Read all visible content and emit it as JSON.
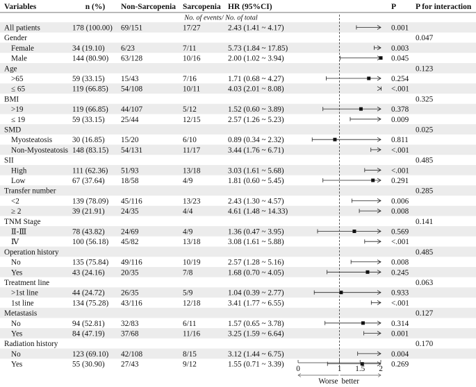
{
  "chart_data": {
    "type": "forest",
    "headers": {
      "variables": "Variables",
      "n": "n (%)",
      "non_sarcopenia": "Non-Sarcopenia",
      "sarcopenia": "Sarcopenia",
      "hr": "HR (95%CI)",
      "p": "P",
      "p_interaction": "P for interaction"
    },
    "subheader": "No. of events/ No. of total",
    "axis": {
      "ticks": [
        0,
        1,
        1.5,
        2
      ],
      "tick_labels": [
        "0",
        "1",
        "1.5",
        "2"
      ],
      "xlim": [
        0,
        2
      ],
      "reference_line": 1,
      "label_left": "Worse",
      "label_right": "better"
    },
    "rows": [
      {
        "type": "item",
        "label": "All patients",
        "n": "178 (100.00)",
        "non_sarc": "69/151",
        "sarc": "17/27",
        "hr_text": "2.43 (1.41 ~ 4.17)",
        "hr": 2.43,
        "lo": 1.41,
        "hi": 4.17,
        "p": "0.001"
      },
      {
        "type": "group",
        "label": "Gender",
        "p_int": "0.047"
      },
      {
        "type": "item",
        "label": "Female",
        "n": "34 (19.10)",
        "non_sarc": "6/23",
        "sarc": "7/11",
        "hr_text": "5.73 (1.84 ~ 17.85)",
        "hr": 5.73,
        "lo": 1.84,
        "hi": 17.85,
        "p": "0.003"
      },
      {
        "type": "item",
        "label": "Male",
        "n": "144 (80.90)",
        "non_sarc": "63/128",
        "sarc": "10/16",
        "hr_text": "2.00 (1.02 ~ 3.94)",
        "hr": 2.0,
        "lo": 1.02,
        "hi": 3.94,
        "p": "0.045"
      },
      {
        "type": "group",
        "label": "Age",
        "p_int": "0.123"
      },
      {
        "type": "item",
        "label": ">65",
        "n": "59 (33.15)",
        "non_sarc": "15/43",
        "sarc": "7/16",
        "hr_text": "1.71 (0.68 ~ 4.27)",
        "hr": 1.71,
        "lo": 0.68,
        "hi": 4.27,
        "p": "0.254"
      },
      {
        "type": "item",
        "label": "≤ 65",
        "n": "119 (66.85)",
        "non_sarc": "54/108",
        "sarc": "10/11",
        "hr_text": "4.03 (2.01 ~ 8.08)",
        "hr": 4.03,
        "lo": 2.01,
        "hi": 8.08,
        "p": "<.001"
      },
      {
        "type": "group",
        "label": "BMI",
        "p_int": "0.325"
      },
      {
        "type": "item",
        "label": ">19",
        "n": "119 (66.85)",
        "non_sarc": "44/107",
        "sarc": "5/12",
        "hr_text": "1.52 (0.60 ~ 3.89)",
        "hr": 1.52,
        "lo": 0.6,
        "hi": 3.89,
        "p": "0.378"
      },
      {
        "type": "item",
        "label": "≤ 19",
        "n": "59 (33.15)",
        "non_sarc": "25/44",
        "sarc": "12/15",
        "hr_text": "2.57 (1.26 ~ 5.23)",
        "hr": 2.57,
        "lo": 1.26,
        "hi": 5.23,
        "p": "0.009"
      },
      {
        "type": "group",
        "label": "SMD",
        "p_int": "0.025"
      },
      {
        "type": "item",
        "label": "Myosteatosis",
        "n": "30 (16.85)",
        "non_sarc": "15/20",
        "sarc": "6/10",
        "hr_text": "0.89 (0.34 ~ 2.32)",
        "hr": 0.89,
        "lo": 0.34,
        "hi": 2.32,
        "p": "0.811"
      },
      {
        "type": "item",
        "label": "Non-Myosteatosis",
        "n": "148 (83.15)",
        "non_sarc": "54/131",
        "sarc": "11/17",
        "hr_text": "3.44 (1.76 ~ 6.71)",
        "hr": 3.44,
        "lo": 1.76,
        "hi": 6.71,
        "p": "<.001"
      },
      {
        "type": "group",
        "label": "SII",
        "p_int": "0.485"
      },
      {
        "type": "item",
        "label": "High",
        "n": "111 (62.36)",
        "non_sarc": "51/93",
        "sarc": "13/18",
        "hr_text": "3.03 (1.61 ~ 5.68)",
        "hr": 3.03,
        "lo": 1.61,
        "hi": 5.68,
        "p": "<.001"
      },
      {
        "type": "item",
        "label": "Low",
        "n": "67 (37.64)",
        "non_sarc": "18/58",
        "sarc": "4/9",
        "hr_text": "1.81 (0.60 ~ 5.45)",
        "hr": 1.81,
        "lo": 0.6,
        "hi": 5.45,
        "p": "0.291"
      },
      {
        "type": "group",
        "label": "Transfer number",
        "p_int": "0.285"
      },
      {
        "type": "item",
        "label": "<2",
        "n": "139 (78.09)",
        "non_sarc": "45/116",
        "sarc": "13/23",
        "hr_text": "2.43 (1.30 ~ 4.57)",
        "hr": 2.43,
        "lo": 1.3,
        "hi": 4.57,
        "p": "0.006"
      },
      {
        "type": "item",
        "label": "≥ 2",
        "n": "39 (21.91)",
        "non_sarc": "24/35",
        "sarc": "4/4",
        "hr_text": "4.61 (1.48 ~ 14.33)",
        "hr": 4.61,
        "lo": 1.48,
        "hi": 14.33,
        "p": "0.008"
      },
      {
        "type": "group",
        "label": "TNM Stage",
        "p_int": "0.141"
      },
      {
        "type": "item",
        "label": "Ⅱ-Ⅲ",
        "n": "78 (43.82)",
        "non_sarc": "24/69",
        "sarc": "4/9",
        "hr_text": "1.36 (0.47 ~ 3.95)",
        "hr": 1.36,
        "lo": 0.47,
        "hi": 3.95,
        "p": "0.569"
      },
      {
        "type": "item",
        "label": "Ⅳ",
        "n": "100 (56.18)",
        "non_sarc": "45/82",
        "sarc": "13/18",
        "hr_text": "3.08 (1.61 ~ 5.88)",
        "hr": 3.08,
        "lo": 1.61,
        "hi": 5.88,
        "p": "<.001"
      },
      {
        "type": "group",
        "label": "Operation history",
        "p_int": "0.485"
      },
      {
        "type": "item",
        "label": "No",
        "n": "135 (75.84)",
        "non_sarc": "49/116",
        "sarc": "10/19",
        "hr_text": "2.57 (1.28 ~ 5.16)",
        "hr": 2.57,
        "lo": 1.28,
        "hi": 5.16,
        "p": "0.008"
      },
      {
        "type": "item",
        "label": "Yes",
        "n": "43 (24.16)",
        "non_sarc": "20/35",
        "sarc": "7/8",
        "hr_text": "1.68 (0.70 ~ 4.05)",
        "hr": 1.68,
        "lo": 0.7,
        "hi": 4.05,
        "p": "0.245"
      },
      {
        "type": "group",
        "label": "Treatment line",
        "p_int": "0.063"
      },
      {
        "type": "item",
        "label": ">1st line",
        "n": "44 (24.72)",
        "non_sarc": "26/35",
        "sarc": "5/9",
        "hr_text": "1.04 (0.39 ~ 2.77)",
        "hr": 1.04,
        "lo": 0.39,
        "hi": 2.77,
        "p": "0.933"
      },
      {
        "type": "item",
        "label": "1st line",
        "n": "134 (75.28)",
        "non_sarc": "43/116",
        "sarc": "12/18",
        "hr_text": "3.41 (1.77 ~ 6.55)",
        "hr": 3.41,
        "lo": 1.77,
        "hi": 6.55,
        "p": "<.001"
      },
      {
        "type": "group",
        "label": "Metastasis",
        "p_int": "0.127"
      },
      {
        "type": "item",
        "label": "No",
        "n": "94 (52.81)",
        "non_sarc": "32/83",
        "sarc": "6/11",
        "hr_text": "1.57 (0.65 ~ 3.78)",
        "hr": 1.57,
        "lo": 0.65,
        "hi": 3.78,
        "p": "0.314"
      },
      {
        "type": "item",
        "label": "Yes",
        "n": "84 (47.19)",
        "non_sarc": "37/68",
        "sarc": "11/16",
        "hr_text": "3.25 (1.59 ~ 6.64)",
        "hr": 3.25,
        "lo": 1.59,
        "hi": 6.64,
        "p": "0.001"
      },
      {
        "type": "group",
        "label": "Radiation history",
        "p_int": "0.170"
      },
      {
        "type": "item",
        "label": "No",
        "n": "123 (69.10)",
        "non_sarc": "42/108",
        "sarc": "8/15",
        "hr_text": "3.12 (1.44 ~ 6.75)",
        "hr": 3.12,
        "lo": 1.44,
        "hi": 6.75,
        "p": "0.004"
      },
      {
        "type": "item",
        "label": "Yes",
        "n": "55 (30.90)",
        "non_sarc": "27/43",
        "sarc": "9/12",
        "hr_text": "1.55 (0.71 ~ 3.39)",
        "hr": 1.55,
        "lo": 0.71,
        "hi": 3.39,
        "p": "0.269"
      }
    ]
  }
}
